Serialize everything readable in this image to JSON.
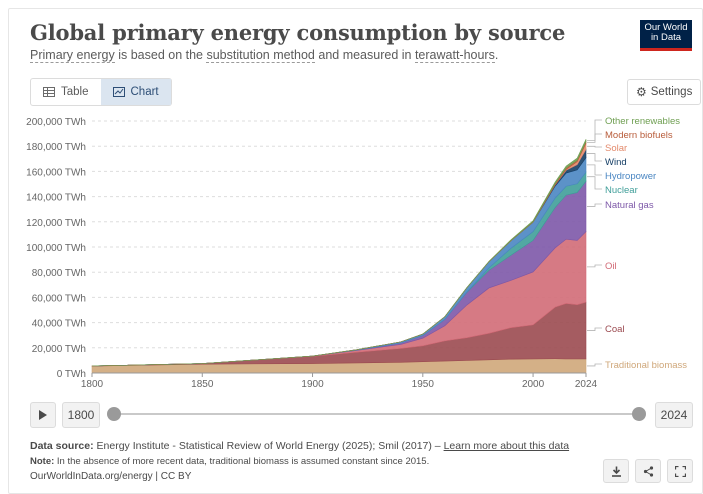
{
  "header": {
    "title": "Global primary energy consumption by source",
    "subtitle_parts": [
      "Primary energy",
      " is based on the ",
      "substitution method",
      " and measured in ",
      "terawatt-hours",
      "."
    ],
    "logo_line1": "Our World",
    "logo_line2": "in Data"
  },
  "tabs": [
    {
      "label": "Table",
      "icon": "table-icon",
      "active": false
    },
    {
      "label": "Chart",
      "icon": "chart-icon",
      "active": true
    }
  ],
  "settings_label": "Settings",
  "colors": {
    "traditional_biomass": "#cfa77a",
    "coal": "#9b4a50",
    "oil": "#d26b77",
    "natural_gas": "#7d58a8",
    "nuclear": "#3f9e99",
    "hydropower": "#4a86c2",
    "wind": "#163f66",
    "solar": "#e38a6c",
    "modern_biofuels": "#b85c3a",
    "other_renewables": "#6f9f52"
  },
  "chart_data": {
    "type": "area",
    "stacked": true,
    "xlim": [
      1800,
      2024
    ],
    "ylim": [
      0,
      200000
    ],
    "y_unit": "TWh",
    "ytick_labels": [
      "0 TWh",
      "20,000 TWh",
      "40,000 TWh",
      "60,000 TWh",
      "80,000 TWh",
      "100,000 TWh",
      "120,000 TWh",
      "140,000 TWh",
      "160,000 TWh",
      "180,000 TWh",
      "200,000 TWh"
    ],
    "yticks": [
      0,
      20000,
      40000,
      60000,
      80000,
      100000,
      120000,
      140000,
      160000,
      180000,
      200000
    ],
    "xtick_labels": [
      "1800",
      "1850",
      "1900",
      "1950",
      "2000",
      "2024"
    ],
    "xticks": [
      1800,
      1850,
      1900,
      1950,
      2000,
      2024
    ],
    "grid": true,
    "legend": "right-inline",
    "x": [
      1800,
      1850,
      1900,
      1920,
      1940,
      1950,
      1960,
      1970,
      1980,
      1990,
      2000,
      2010,
      2015,
      2020,
      2024
    ],
    "series": [
      {
        "name": "Traditional biomass",
        "key": "traditional_biomass",
        "values": [
          5500,
          7000,
          7500,
          8000,
          8500,
          9000,
          9500,
          10000,
          10500,
          11000,
          11200,
          11300,
          11200,
          11200,
          11200
        ]
      },
      {
        "name": "Coal",
        "key": "coal",
        "values": [
          100,
          500,
          5700,
          8500,
          11000,
          12600,
          16000,
          18000,
          21000,
          25000,
          27000,
          41000,
          44000,
          43000,
          45000
        ]
      },
      {
        "name": "Oil",
        "key": "oil",
        "values": [
          0,
          0,
          200,
          1400,
          3200,
          6000,
          12000,
          26000,
          36000,
          37500,
          42000,
          47000,
          51000,
          51000,
          56000
        ]
      },
      {
        "name": "Natural gas",
        "key": "natural_gas",
        "values": [
          0,
          0,
          60,
          300,
          1100,
          2100,
          5000,
          10000,
          14000,
          20000,
          25000,
          32000,
          35000,
          38000,
          40000
        ]
      },
      {
        "name": "Nuclear",
        "key": "nuclear",
        "values": [
          0,
          0,
          0,
          0,
          0,
          0,
          0,
          250,
          2000,
          5500,
          7000,
          7500,
          7000,
          7000,
          7200
        ]
      },
      {
        "name": "Hydropower",
        "key": "hydropower",
        "values": [
          0,
          0,
          20,
          300,
          900,
          1200,
          2200,
          3500,
          4800,
          6000,
          7500,
          9500,
          10500,
          11000,
          11500
        ]
      },
      {
        "name": "Wind",
        "key": "wind",
        "values": [
          0,
          0,
          0,
          0,
          0,
          0,
          0,
          0,
          0,
          20,
          80,
          900,
          2200,
          4200,
          6500
        ]
      },
      {
        "name": "Solar",
        "key": "solar",
        "values": [
          0,
          0,
          0,
          0,
          0,
          0,
          0,
          0,
          0,
          0,
          5,
          90,
          750,
          2300,
          5000
        ]
      },
      {
        "name": "Modern biofuels",
        "key": "modern_biofuels",
        "values": [
          0,
          0,
          0,
          0,
          0,
          0,
          0,
          0,
          100,
          250,
          300,
          1000,
          1100,
          1150,
          1300
        ]
      },
      {
        "name": "Other renewables",
        "key": "other_renewables",
        "values": [
          0,
          0,
          0,
          0,
          0,
          0,
          50,
          150,
          250,
          500,
          800,
          1300,
          1500,
          1700,
          1800
        ]
      }
    ]
  },
  "timeline": {
    "play_icon": "play-icon",
    "start_label": "1800",
    "end_label": "2024"
  },
  "footer": {
    "source_label": "Data source:",
    "source_text": "Energy Institute - Statistical Review of World Energy (2025); Smil (2017) –",
    "learn_more": "Learn more about this data",
    "note_label": "Note:",
    "note_text": "In the absence of more recent data, traditional biomass is assumed constant since 2015.",
    "credit": "OurWorldInData.org/energy | CC BY"
  }
}
